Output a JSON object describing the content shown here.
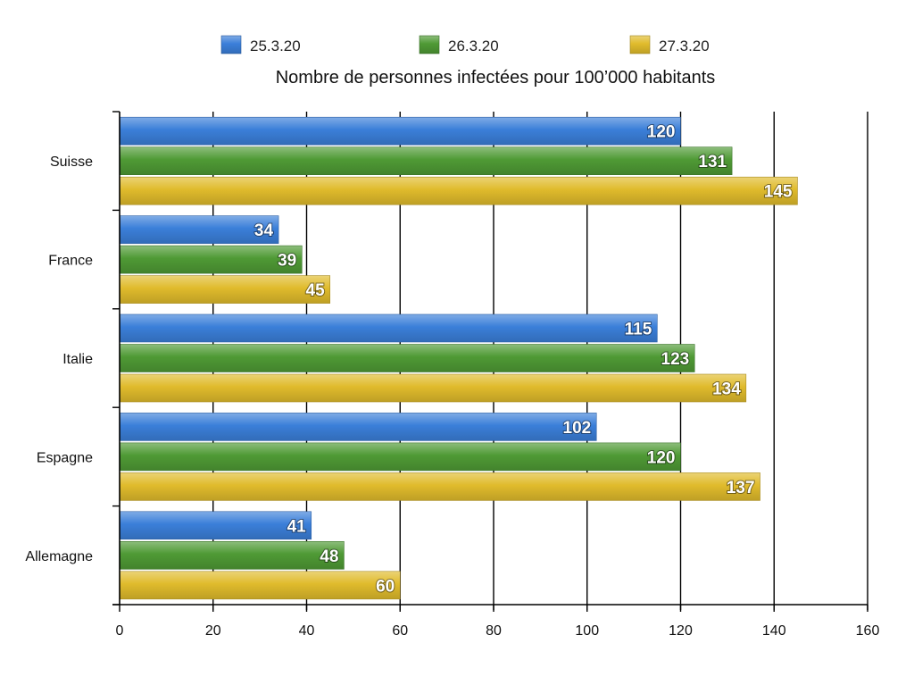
{
  "chart_data": {
    "type": "bar",
    "orientation": "horizontal",
    "title": "Nombre de personnes infectées pour 100’000 habitants",
    "categories": [
      "Suisse",
      "France",
      "Italie",
      "Espagne",
      "Allemagne"
    ],
    "series": [
      {
        "name": "25.3.20",
        "color": "#3b7fd9",
        "values": [
          120,
          34,
          115,
          102,
          41
        ]
      },
      {
        "name": "26.3.20",
        "color": "#4f9a35",
        "values": [
          131,
          39,
          123,
          120,
          48
        ]
      },
      {
        "name": "27.3.20",
        "color": "#e0bb2c",
        "values": [
          145,
          45,
          134,
          137,
          60
        ]
      }
    ],
    "xlim": [
      0,
      160
    ],
    "xticks": [
      0,
      20,
      40,
      60,
      80,
      100,
      120,
      140,
      160
    ],
    "xlabel": "",
    "ylabel": "",
    "grid": true,
    "legend": "top"
  }
}
